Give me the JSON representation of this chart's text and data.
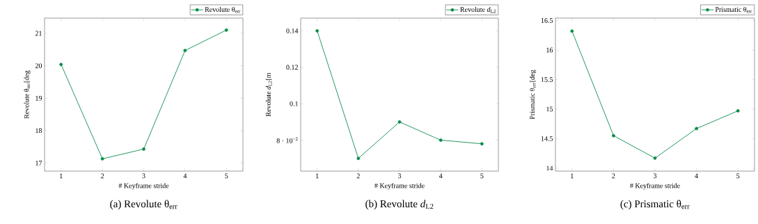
{
  "chart_data": [
    {
      "type": "line",
      "title": "(a) Revolute θ$_{err}$",
      "xlabel": "# Keyframe stride",
      "ylabel": "Revolute θ$_{err}$[deg",
      "x": [
        1,
        2,
        3,
        4,
        5
      ],
      "xlim": [
        0.6,
        5.4
      ],
      "xticks": [
        1,
        2,
        3,
        4,
        5
      ],
      "ylim": [
        16.75,
        21.47
      ],
      "yticks": [
        17,
        18,
        19,
        20,
        21
      ],
      "legend": "top right",
      "marker": "circle",
      "series": [
        {
          "name": "Revolute θ$_{err}$",
          "color": "#0b8c4c",
          "values": [
            20.04,
            17.13,
            17.43,
            20.47,
            21.1
          ]
        }
      ]
    },
    {
      "type": "line",
      "title": "(b) Revolute *d*$_{L2}$",
      "xlabel": "# Keyframe stride",
      "ylabel": "Revolute *d*$_{L2}$[m",
      "x": [
        1,
        2,
        3,
        4,
        5
      ],
      "xlim": [
        0.6,
        5.4
      ],
      "xticks": [
        1,
        2,
        3,
        4,
        5
      ],
      "ylim": [
        0.063,
        0.147
      ],
      "yticks": [
        {
          "value": 0.08,
          "label": "8 · 10$^{−2}$"
        },
        0.1,
        0.12,
        0.14
      ],
      "legend": "top right",
      "marker": "circle",
      "series": [
        {
          "name": "Revolute *d*$_{L2}$",
          "color": "#0b8c4c",
          "values": [
            0.14,
            0.07,
            0.09,
            0.08,
            0.078
          ]
        }
      ]
    },
    {
      "type": "line",
      "title": "(c) Prismatic θ$_{err}$",
      "xlabel": "# Keyframe stride",
      "ylabel": "Prismatic θ$_{err}$[deg",
      "x": [
        1,
        2,
        3,
        4,
        5
      ],
      "xlim": [
        0.6,
        5.4
      ],
      "xticks": [
        1,
        2,
        3,
        4,
        5
      ],
      "ylim": [
        13.95,
        16.54
      ],
      "yticks": [
        14,
        14.5,
        15,
        15.5,
        16,
        16.5
      ],
      "legend": "top right",
      "marker": "circle",
      "series": [
        {
          "name": "Prismatic θ$_{err}$",
          "color": "#0b8c4c",
          "values": [
            16.32,
            14.55,
            14.17,
            14.67,
            14.97
          ]
        }
      ]
    }
  ]
}
